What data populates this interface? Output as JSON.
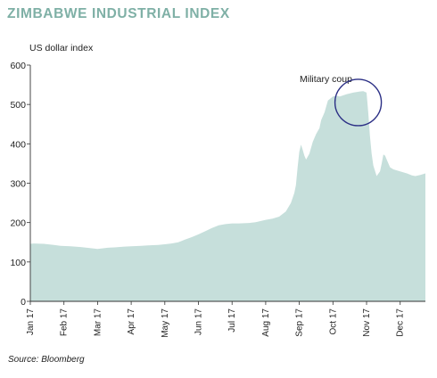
{
  "title": "ZIMBABWE INDUSTRIAL INDEX",
  "source": "Source: Bloomberg",
  "colors": {
    "title": "#7fb0a6",
    "area": "#c6dfdb",
    "annotation_circle": "#2b2f85",
    "axis": "#333333"
  },
  "chart_data": {
    "type": "area",
    "title": "ZIMBABWE INDUSTRIAL INDEX",
    "ylabel": "US dollar index",
    "xlabel": "",
    "ylim": [
      0,
      600
    ],
    "yticks": [
      0,
      100,
      200,
      300,
      400,
      500,
      600
    ],
    "grid": false,
    "x_tick_labels": [
      "Jan 17",
      "Feb 17",
      "Mar 17",
      "Apr 17",
      "May 17",
      "Jun 17",
      "Jul 17",
      "Aug 17",
      "Sep 17",
      "Oct 17",
      "Nov 17",
      "Dec 17"
    ],
    "x_months": [
      0,
      1,
      2,
      3,
      4,
      5,
      6,
      7,
      8,
      9,
      10,
      11
    ],
    "x_max_months": 11.75,
    "series": [
      {
        "x": [
          0,
          0.1,
          0.4,
          0.7,
          0.9,
          1.2,
          1.5,
          1.8,
          2.0,
          2.3,
          2.5,
          2.8,
          3.0,
          3.3,
          3.5,
          3.8,
          4.0,
          4.2,
          4.4,
          4.6,
          4.8,
          5.0,
          5.2,
          5.4,
          5.6,
          5.8,
          6.0,
          6.2,
          6.5,
          6.7,
          7.0,
          7.2,
          7.4,
          7.6,
          7.75,
          7.85,
          7.9,
          7.95,
          8.0,
          8.05,
          8.1,
          8.15,
          8.2,
          8.3,
          8.4,
          8.5,
          8.6,
          8.65,
          8.75,
          8.85,
          9.0,
          9.1,
          9.2,
          9.4,
          9.6,
          9.8,
          9.9,
          10.0,
          10.05,
          10.1,
          10.15,
          10.2,
          10.3,
          10.4,
          10.45,
          10.5,
          10.55,
          10.6,
          10.7,
          10.8,
          11.0,
          11.2,
          11.35,
          11.45,
          11.6,
          11.75
        ],
        "y": [
          146,
          147,
          146,
          143,
          141,
          140,
          138,
          135,
          133,
          136,
          137,
          139,
          140,
          141,
          142,
          143,
          145,
          147,
          150,
          157,
          163,
          170,
          178,
          186,
          193,
          196,
          198,
          198,
          199,
          201,
          207,
          210,
          215,
          228,
          250,
          275,
          295,
          340,
          380,
          398,
          385,
          370,
          360,
          375,
          405,
          425,
          440,
          460,
          480,
          510,
          520,
          522,
          520,
          526,
          530,
          533,
          534,
          530,
          480,
          420,
          375,
          345,
          318,
          330,
          350,
          373,
          370,
          360,
          340,
          335,
          330,
          325,
          320,
          318,
          321,
          325
        ]
      }
    ],
    "annotations": [
      {
        "text": "Military coup",
        "x": 9.75,
        "y": 505
      }
    ]
  }
}
